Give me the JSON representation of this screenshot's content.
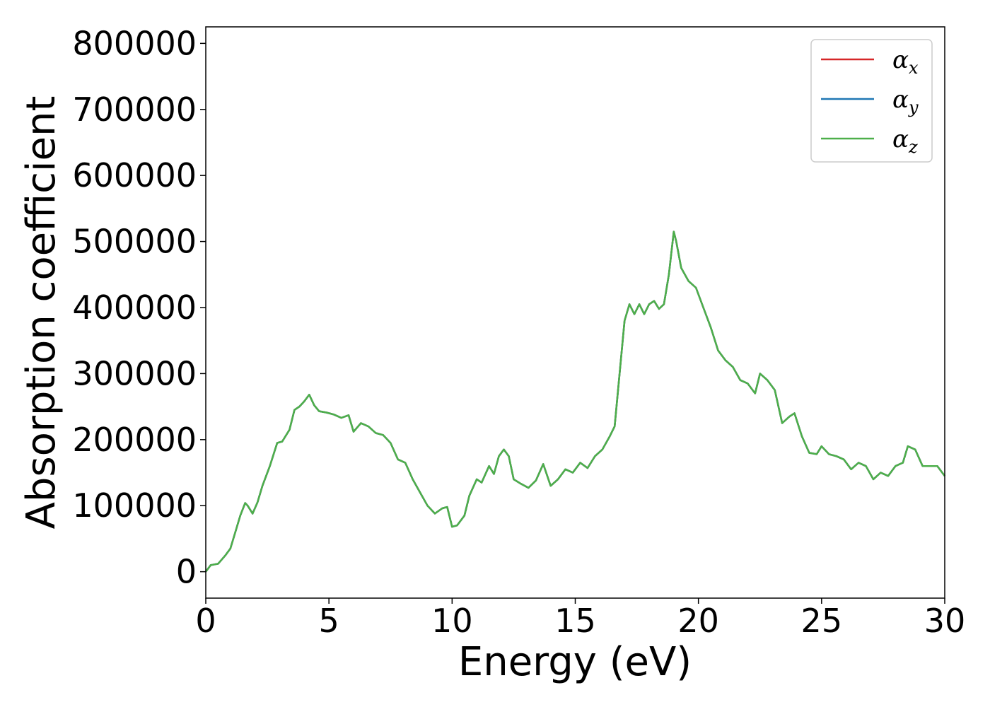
{
  "chart_data": {
    "type": "line",
    "xlabel": "Energy (eV)",
    "ylabel": "Absorption coefficient",
    "xlim": [
      0,
      30
    ],
    "ylim": [
      -40000,
      825000
    ],
    "xticks": [
      0,
      5,
      10,
      15,
      20,
      25,
      30
    ],
    "yticks": [
      0,
      100000,
      200000,
      300000,
      400000,
      500000,
      600000,
      700000,
      800000
    ],
    "grid": false,
    "legend": {
      "position": "top-right",
      "entries": [
        {
          "symbol": "α",
          "subscript": "x",
          "color": "#d62728"
        },
        {
          "symbol": "α",
          "subscript": "y",
          "color": "#1f77b4"
        },
        {
          "symbol": "α",
          "subscript": "z",
          "color": "#4daf4a"
        }
      ]
    },
    "x": [
      0,
      0.2,
      0.5,
      0.8,
      1.0,
      1.2,
      1.4,
      1.6,
      1.7,
      1.9,
      2.1,
      2.3,
      2.6,
      2.9,
      3.1,
      3.4,
      3.6,
      3.8,
      4.0,
      4.2,
      4.4,
      4.6,
      4.9,
      5.2,
      5.5,
      5.8,
      6.0,
      6.3,
      6.6,
      6.9,
      7.2,
      7.5,
      7.8,
      8.1,
      8.4,
      8.7,
      9.0,
      9.3,
      9.6,
      9.8,
      10.0,
      10.2,
      10.5,
      10.7,
      11.0,
      11.2,
      11.5,
      11.7,
      11.9,
      12.1,
      12.3,
      12.5,
      12.8,
      13.1,
      13.4,
      13.7,
      14.0,
      14.3,
      14.6,
      14.9,
      15.2,
      15.5,
      15.8,
      16.1,
      16.4,
      16.6,
      16.8,
      17.0,
      17.2,
      17.4,
      17.6,
      17.8,
      18.0,
      18.2,
      18.4,
      18.6,
      18.8,
      19.0,
      19.1,
      19.3,
      19.6,
      19.9,
      20.2,
      20.5,
      20.8,
      21.1,
      21.4,
      21.7,
      22.0,
      22.3,
      22.5,
      22.8,
      23.1,
      23.4,
      23.7,
      23.9,
      24.2,
      24.5,
      24.8,
      25.0,
      25.3,
      25.6,
      25.9,
      26.2,
      26.5,
      26.8,
      27.1,
      27.4,
      27.7,
      28.0,
      28.3,
      28.5,
      28.8,
      29.1,
      29.4,
      29.7,
      30.0
    ],
    "series": [
      {
        "name": "α_x",
        "color": "#d62728",
        "values": [
          0,
          10000,
          12000,
          25000,
          35000,
          60000,
          85000,
          104000,
          100000,
          88000,
          105000,
          130000,
          160000,
          195000,
          197000,
          215000,
          245000,
          250000,
          258000,
          268000,
          252000,
          243000,
          241000,
          238000,
          233000,
          237000,
          212000,
          225000,
          220000,
          210000,
          207000,
          195000,
          170000,
          165000,
          140000,
          120000,
          100000,
          88000,
          96000,
          98000,
          68000,
          70000,
          85000,
          115000,
          140000,
          135000,
          160000,
          148000,
          175000,
          185000,
          175000,
          140000,
          133000,
          127000,
          138000,
          163000,
          130000,
          140000,
          155000,
          150000,
          165000,
          157000,
          175000,
          185000,
          205000,
          220000,
          300000,
          380000,
          405000,
          390000,
          405000,
          390000,
          405000,
          410000,
          398000,
          405000,
          450000,
          515000,
          500000,
          460000,
          440000,
          430000,
          400000,
          370000,
          335000,
          320000,
          310000,
          290000,
          285000,
          270000,
          300000,
          290000,
          275000,
          225000,
          235000,
          240000,
          205000,
          180000,
          178000,
          190000,
          178000,
          175000,
          170000,
          155000,
          165000,
          160000,
          140000,
          150000,
          145000,
          160000,
          165000,
          190000,
          185000,
          160000,
          160000,
          160000,
          145000
        ]
      },
      {
        "name": "α_y",
        "color": "#1f77b4",
        "values": [
          0,
          10000,
          12000,
          25000,
          35000,
          60000,
          85000,
          104000,
          100000,
          88000,
          105000,
          130000,
          160000,
          195000,
          197000,
          215000,
          245000,
          250000,
          258000,
          268000,
          252000,
          243000,
          241000,
          238000,
          233000,
          237000,
          212000,
          225000,
          220000,
          210000,
          207000,
          195000,
          170000,
          165000,
          140000,
          120000,
          100000,
          88000,
          96000,
          98000,
          68000,
          70000,
          85000,
          115000,
          140000,
          135000,
          160000,
          148000,
          175000,
          185000,
          175000,
          140000,
          133000,
          127000,
          138000,
          163000,
          130000,
          140000,
          155000,
          150000,
          165000,
          157000,
          175000,
          185000,
          205000,
          220000,
          300000,
          380000,
          405000,
          390000,
          405000,
          390000,
          405000,
          410000,
          398000,
          405000,
          450000,
          515000,
          500000,
          460000,
          440000,
          430000,
          400000,
          370000,
          335000,
          320000,
          310000,
          290000,
          285000,
          270000,
          300000,
          290000,
          275000,
          225000,
          235000,
          240000,
          205000,
          180000,
          178000,
          190000,
          178000,
          175000,
          170000,
          155000,
          165000,
          160000,
          140000,
          150000,
          145000,
          160000,
          165000,
          190000,
          185000,
          160000,
          160000,
          160000,
          145000
        ]
      },
      {
        "name": "α_z",
        "color": "#4daf4a",
        "values": [
          0,
          10000,
          12000,
          25000,
          35000,
          60000,
          85000,
          104000,
          100000,
          88000,
          105000,
          130000,
          160000,
          195000,
          197000,
          215000,
          245000,
          250000,
          258000,
          268000,
          252000,
          243000,
          241000,
          238000,
          233000,
          237000,
          212000,
          225000,
          220000,
          210000,
          207000,
          195000,
          170000,
          165000,
          140000,
          120000,
          100000,
          88000,
          96000,
          98000,
          68000,
          70000,
          85000,
          115000,
          140000,
          135000,
          160000,
          148000,
          175000,
          185000,
          175000,
          140000,
          133000,
          127000,
          138000,
          163000,
          130000,
          140000,
          155000,
          150000,
          165000,
          157000,
          175000,
          185000,
          205000,
          220000,
          300000,
          380000,
          405000,
          390000,
          405000,
          390000,
          405000,
          410000,
          398000,
          405000,
          450000,
          515000,
          500000,
          460000,
          440000,
          430000,
          400000,
          370000,
          335000,
          320000,
          310000,
          290000,
          285000,
          270000,
          300000,
          290000,
          275000,
          225000,
          235000,
          240000,
          205000,
          180000,
          178000,
          190000,
          178000,
          175000,
          170000,
          155000,
          165000,
          160000,
          140000,
          150000,
          145000,
          160000,
          165000,
          190000,
          185000,
          160000,
          160000,
          160000,
          145000
        ]
      }
    ]
  }
}
